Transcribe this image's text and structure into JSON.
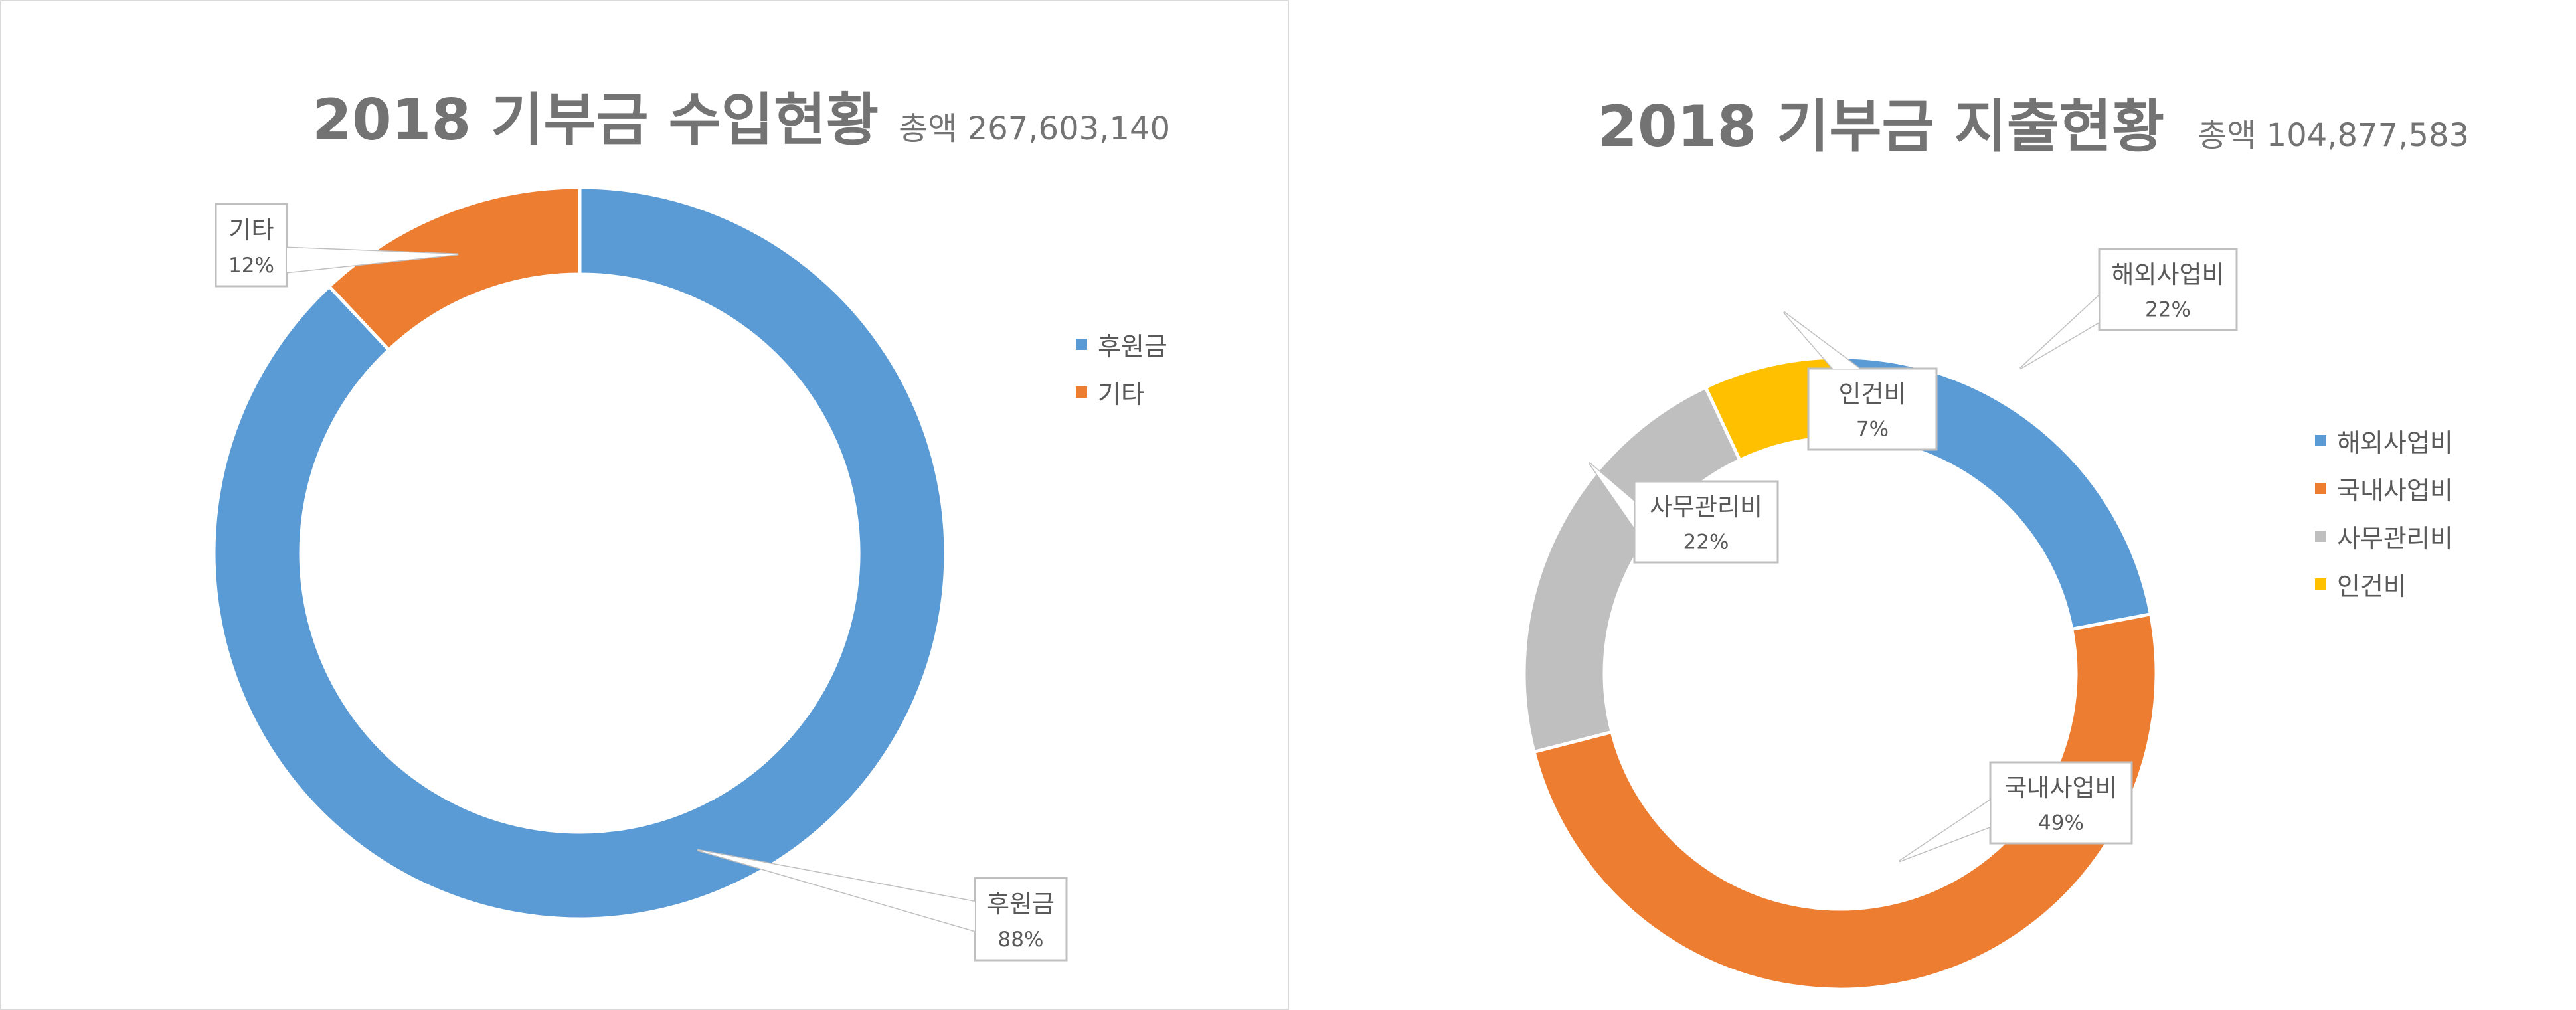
{
  "charts": [
    {
      "title": "2018 기부금 수입현황",
      "subtitle": "총액 267,603,140"
    },
    {
      "title": "2018 기부금 지출현황",
      "subtitle": "총액 104,877,583"
    }
  ],
  "chart_data": [
    {
      "type": "pie",
      "variant": "doughnut",
      "title": "2018 기부금 수입현황",
      "subtitle": "총액 267,603,140",
      "categories": [
        "후원금",
        "기타"
      ],
      "values": [
        88,
        12
      ],
      "unit": "%",
      "colors": [
        "#5b9bd5",
        "#ed7d31"
      ],
      "labels": [
        "88%",
        "12%"
      ],
      "legend": "right"
    },
    {
      "type": "pie",
      "variant": "doughnut",
      "title": "2018 기부금 지출현황",
      "subtitle": "총액 104,877,583",
      "categories": [
        "해외사업비",
        "국내사업비",
        "사무관리비",
        "인건비"
      ],
      "values": [
        22,
        49,
        22,
        7
      ],
      "unit": "%",
      "colors": [
        "#5b9bd5",
        "#ed7d31",
        "#bfbfbf",
        "#ffc000"
      ],
      "labels": [
        "22%",
        "49%",
        "22%",
        "7%"
      ],
      "legend": "right"
    }
  ]
}
